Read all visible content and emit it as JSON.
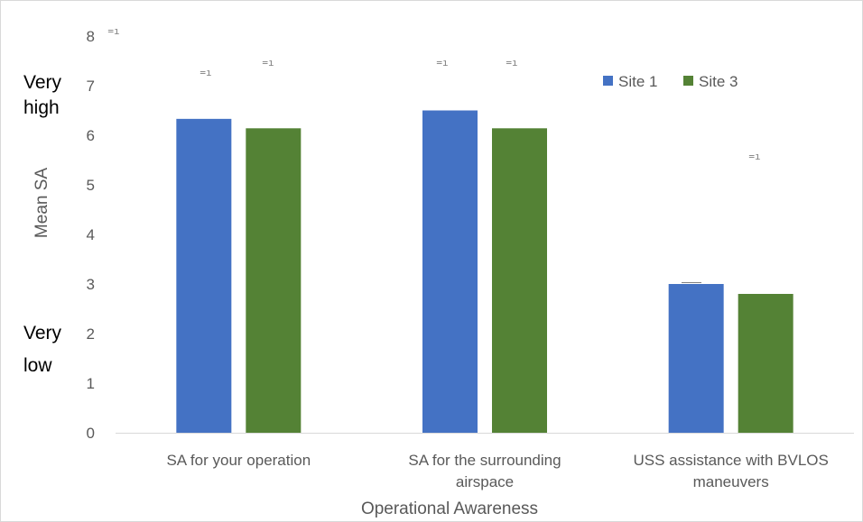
{
  "colors": {
    "site1": "#4472C4",
    "site3": "#548235",
    "text": "#595959",
    "border": "#d9d9d9"
  },
  "annotations": {
    "very_high_line1": "Very",
    "very_high_line2": "high",
    "very_low_line1": "Very",
    "very_low_line2": "low"
  },
  "chart_data": {
    "type": "bar",
    "categories": [
      [
        "SA for your operation"
      ],
      [
        "SA for the surrounding",
        "airspace"
      ],
      [
        "USS assistance with BVLOS",
        "maneuvers"
      ]
    ],
    "series": [
      {
        "name": "Site 1",
        "values": [
          6.33,
          6.5,
          3.0
        ]
      },
      {
        "name": "Site 3",
        "values": [
          6.14,
          6.14,
          2.8
        ]
      }
    ],
    "xlabel": "Operational Awareness",
    "ylabel": "Mean SA",
    "ylim": [
      0,
      8
    ],
    "yticks": [
      0,
      1,
      2,
      3,
      4,
      5,
      6,
      7,
      8
    ],
    "legend_position": "top-right"
  }
}
